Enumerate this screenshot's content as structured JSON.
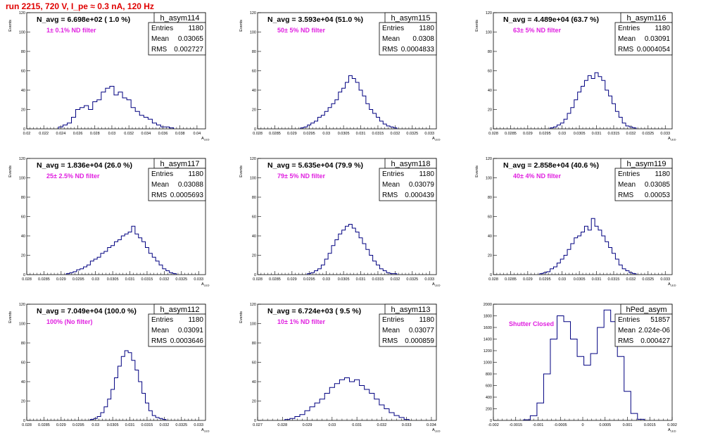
{
  "header": {
    "run_title": "run 2215,   720 V, I_pe ≈ 0.3 nA, 120 Hz"
  },
  "stats_labels": {
    "entries": "Entries",
    "mean": "Mean",
    "rms": "RMS"
  },
  "colors": {
    "hist_line": "#000080",
    "title": "#e00000",
    "annotation": "#e020e0"
  },
  "chart_data": [
    {
      "type": "bar",
      "name": "h_asym114",
      "navg": "N_avg = 6.698e+02 ( 1.0 %)",
      "filter": "1± 0.1% ND filter",
      "entries": "1180",
      "mean": "0.03065",
      "rms": "0.002727",
      "xlabel": "A_LED",
      "ylabel": "Events",
      "xlim": [
        0.02,
        0.041
      ],
      "ylim": [
        0,
        120
      ],
      "xticks": [
        "0.02",
        "0.022",
        "0.024",
        "0.026",
        "0.028",
        "0.03",
        "0.032",
        "0.034",
        "0.036",
        "0.038",
        "0.04"
      ],
      "yticks": [
        "0",
        "20",
        "40",
        "60",
        "80",
        "100",
        "120"
      ],
      "x": [
        0.024,
        0.0245,
        0.025,
        0.0255,
        0.026,
        0.0265,
        0.027,
        0.0275,
        0.028,
        0.0285,
        0.029,
        0.0295,
        0.03,
        0.0305,
        0.031,
        0.0315,
        0.032,
        0.0325,
        0.033,
        0.0335,
        0.034,
        0.0345,
        0.035,
        0.0355,
        0.036,
        0.0365,
        0.037
      ],
      "values": [
        2,
        4,
        6,
        12,
        20,
        22,
        24,
        20,
        28,
        30,
        38,
        42,
        44,
        35,
        38,
        32,
        30,
        22,
        18,
        14,
        12,
        10,
        6,
        4,
        2,
        2,
        1
      ]
    },
    {
      "type": "bar",
      "name": "h_asym115",
      "navg": "N_avg = 3.593e+04 (51.0 %)",
      "filter": "50± 5% ND filter",
      "entries": "1180",
      "mean": "0.0308",
      "rms": "0.0004833",
      "xlabel": "A_LED",
      "ylabel": "Events",
      "xlim": [
        0.028,
        0.0332
      ],
      "ylim": [
        0,
        120
      ],
      "xticks": [
        "0.028",
        "0.0285",
        "0.029",
        "0.0295",
        "0.03",
        "0.0305",
        "0.031",
        "0.0315",
        "0.032",
        "0.0325",
        "0.033"
      ],
      "yticks": [
        "0",
        "20",
        "40",
        "60",
        "80",
        "100",
        "120"
      ],
      "x": [
        0.0293,
        0.0294,
        0.0295,
        0.0296,
        0.0297,
        0.0298,
        0.0299,
        0.03,
        0.0301,
        0.0302,
        0.0303,
        0.0304,
        0.0305,
        0.0306,
        0.0307,
        0.0308,
        0.0309,
        0.031,
        0.0311,
        0.0312,
        0.0313,
        0.0314,
        0.0315,
        0.0316,
        0.0317,
        0.0318,
        0.0319,
        0.032
      ],
      "values": [
        1,
        2,
        4,
        6,
        8,
        12,
        14,
        18,
        22,
        26,
        30,
        38,
        42,
        48,
        55,
        52,
        48,
        40,
        34,
        26,
        20,
        16,
        12,
        8,
        5,
        3,
        2,
        1
      ]
    },
    {
      "type": "bar",
      "name": "h_asym116",
      "navg": "N_avg = 4.489e+04 (63.7 %)",
      "filter": "63± 5% ND filter",
      "entries": "1180",
      "mean": "0.03091",
      "rms": "0.0004054",
      "xlabel": "A_LED",
      "ylabel": "Events",
      "xlim": [
        0.028,
        0.0332
      ],
      "ylim": [
        0,
        120
      ],
      "xticks": [
        "0.028",
        "0.0285",
        "0.029",
        "0.0295",
        "0.03",
        "0.0305",
        "0.031",
        "0.0315",
        "0.032",
        "0.0325",
        "0.033"
      ],
      "yticks": [
        "0",
        "20",
        "40",
        "60",
        "80",
        "100",
        "120"
      ],
      "x": [
        0.0297,
        0.0298,
        0.0299,
        0.03,
        0.0301,
        0.0302,
        0.0303,
        0.0304,
        0.0305,
        0.0306,
        0.0307,
        0.0308,
        0.0309,
        0.031,
        0.0311,
        0.0312,
        0.0313,
        0.0314,
        0.0315,
        0.0316,
        0.0317,
        0.0318,
        0.0319,
        0.032,
        0.0321
      ],
      "values": [
        1,
        2,
        4,
        6,
        10,
        16,
        22,
        30,
        38,
        44,
        50,
        55,
        52,
        58,
        54,
        50,
        40,
        34,
        26,
        18,
        12,
        6,
        3,
        2,
        1
      ]
    },
    {
      "type": "bar",
      "name": "h_asym117",
      "navg": "N_avg = 1.836e+04 (26.0 %)",
      "filter": "25± 2.5% ND filter",
      "entries": "1180",
      "mean": "0.03088",
      "rms": "0.0005693",
      "xlabel": "A_LED",
      "ylabel": "Events",
      "xlim": [
        0.028,
        0.0332
      ],
      "ylim": [
        0,
        120
      ],
      "xticks": [
        "0.028",
        "0.0285",
        "0.029",
        "0.0295",
        "0.03",
        "0.0305",
        "0.031",
        "0.0315",
        "0.032",
        "0.0325",
        "0.033"
      ],
      "yticks": [
        "0",
        "20",
        "40",
        "60",
        "80",
        "100",
        "120"
      ],
      "x": [
        0.0292,
        0.0293,
        0.0294,
        0.0295,
        0.0296,
        0.0297,
        0.0298,
        0.0299,
        0.03,
        0.0301,
        0.0302,
        0.0303,
        0.0304,
        0.0305,
        0.0306,
        0.0307,
        0.0308,
        0.0309,
        0.031,
        0.0311,
        0.0312,
        0.0313,
        0.0314,
        0.0315,
        0.0316,
        0.0317,
        0.0318,
        0.0319,
        0.032,
        0.0321,
        0.0322,
        0.0323
      ],
      "values": [
        1,
        2,
        3,
        5,
        6,
        8,
        10,
        14,
        16,
        18,
        22,
        24,
        28,
        30,
        34,
        36,
        40,
        42,
        44,
        50,
        42,
        38,
        34,
        28,
        22,
        18,
        14,
        10,
        6,
        4,
        2,
        1
      ]
    },
    {
      "type": "bar",
      "name": "h_asym118",
      "navg": "N_avg = 5.635e+04 (79.9 %)",
      "filter": "79± 5% ND filter",
      "entries": "1180",
      "mean": "0.03079",
      "rms": "0.000439",
      "xlabel": "A_LED",
      "ylabel": "Events",
      "xlim": [
        0.028,
        0.0332
      ],
      "ylim": [
        0,
        120
      ],
      "xticks": [
        "0.028",
        "0.0285",
        "0.029",
        "0.0295",
        "0.03",
        "0.0305",
        "0.031",
        "0.0315",
        "0.032",
        "0.0325",
        "0.033"
      ],
      "yticks": [
        "0",
        "20",
        "40",
        "60",
        "80",
        "100",
        "120"
      ],
      "x": [
        0.0295,
        0.0296,
        0.0297,
        0.0298,
        0.0299,
        0.03,
        0.0301,
        0.0302,
        0.0303,
        0.0304,
        0.0305,
        0.0306,
        0.0307,
        0.0308,
        0.0309,
        0.031,
        0.0311,
        0.0312,
        0.0313,
        0.0314,
        0.0315,
        0.0316,
        0.0317,
        0.0318,
        0.0319,
        0.032
      ],
      "values": [
        1,
        2,
        4,
        6,
        10,
        16,
        22,
        30,
        36,
        42,
        46,
        50,
        52,
        48,
        44,
        38,
        32,
        26,
        20,
        14,
        10,
        6,
        4,
        2,
        1,
        1
      ]
    },
    {
      "type": "bar",
      "name": "h_asym119",
      "navg": "N_avg = 2.858e+04 (40.6 %)",
      "filter": "40± 4% ND filter",
      "entries": "1180",
      "mean": "0.03085",
      "rms": "0.00053",
      "xlabel": "A_LED",
      "ylabel": "Events",
      "xlim": [
        0.028,
        0.0332
      ],
      "ylim": [
        0,
        120
      ],
      "xticks": [
        "0.028",
        "0.0285",
        "0.029",
        "0.0295",
        "0.03",
        "0.0305",
        "0.031",
        "0.0315",
        "0.032",
        "0.0325",
        "0.033"
      ],
      "yticks": [
        "0",
        "20",
        "40",
        "60",
        "80",
        "100",
        "120"
      ],
      "x": [
        0.0294,
        0.0295,
        0.0296,
        0.0297,
        0.0298,
        0.0299,
        0.03,
        0.0301,
        0.0302,
        0.0303,
        0.0304,
        0.0305,
        0.0306,
        0.0307,
        0.0308,
        0.0309,
        0.031,
        0.0311,
        0.0312,
        0.0313,
        0.0314,
        0.0315,
        0.0316,
        0.0317,
        0.0318,
        0.0319,
        0.032,
        0.0321
      ],
      "values": [
        1,
        2,
        3,
        6,
        8,
        12,
        16,
        20,
        26,
        32,
        38,
        40,
        44,
        50,
        46,
        58,
        50,
        46,
        40,
        34,
        28,
        22,
        16,
        10,
        6,
        4,
        2,
        1
      ]
    },
    {
      "type": "bar",
      "name": "h_asym112",
      "navg": "N_avg = 7.049e+04 (100.0 %)",
      "filter": "100% (No filter)",
      "entries": "1180",
      "mean": "0.03091",
      "rms": "0.0003646",
      "xlabel": "A_LED",
      "ylabel": "Events",
      "xlim": [
        0.028,
        0.0332
      ],
      "ylim": [
        0,
        120
      ],
      "xticks": [
        "0.028",
        "0.0285",
        "0.029",
        "0.0295",
        "0.03",
        "0.0305",
        "0.031",
        "0.0315",
        "0.032",
        "0.0325",
        "0.033"
      ],
      "yticks": [
        "0",
        "20",
        "40",
        "60",
        "80",
        "100",
        "120"
      ],
      "x": [
        0.0299,
        0.03,
        0.0301,
        0.0302,
        0.0303,
        0.0304,
        0.0305,
        0.0306,
        0.0307,
        0.0308,
        0.0309,
        0.031,
        0.0311,
        0.0312,
        0.0313,
        0.0314,
        0.0315,
        0.0316,
        0.0317,
        0.0318,
        0.0319,
        0.032
      ],
      "values": [
        1,
        2,
        4,
        8,
        14,
        22,
        32,
        44,
        56,
        66,
        72,
        70,
        62,
        52,
        40,
        28,
        18,
        10,
        5,
        3,
        2,
        1
      ]
    },
    {
      "type": "bar",
      "name": "h_asym113",
      "navg": "N_avg = 6.724e+03 ( 9.5 %)",
      "filter": "10± 1% ND filter",
      "entries": "1180",
      "mean": "0.03077",
      "rms": "0.000859",
      "xlabel": "A_LED",
      "ylabel": "Events",
      "xlim": [
        0.027,
        0.0342
      ],
      "ylim": [
        0,
        120
      ],
      "xticks": [
        "0.027",
        "0.028",
        "0.029",
        "0.03",
        "0.031",
        "0.032",
        "0.033",
        "0.034"
      ],
      "yticks": [
        "0",
        "20",
        "40",
        "60",
        "80",
        "100",
        "120"
      ],
      "x": [
        0.0282,
        0.0284,
        0.0286,
        0.0288,
        0.029,
        0.0292,
        0.0294,
        0.0296,
        0.0298,
        0.03,
        0.0302,
        0.0304,
        0.0306,
        0.0308,
        0.031,
        0.0312,
        0.0314,
        0.0316,
        0.0318,
        0.032,
        0.0322,
        0.0324,
        0.0326,
        0.0328,
        0.033
      ],
      "values": [
        1,
        2,
        4,
        6,
        10,
        14,
        18,
        22,
        28,
        34,
        38,
        42,
        44,
        40,
        42,
        36,
        32,
        28,
        22,
        16,
        12,
        8,
        5,
        3,
        1
      ]
    },
    {
      "type": "bar",
      "name": "hPed_asym",
      "navg": "",
      "filter": "Shutter Closed",
      "entries": "51857",
      "mean": "2.024e-06",
      "rms": "0.000427",
      "xlabel": "A_LED",
      "ylabel": "",
      "xlim": [
        -0.002,
        0.002
      ],
      "ylim": [
        0,
        2000
      ],
      "xticks": [
        "-0.002",
        "-0.0015",
        "-0.001",
        "-0.0005",
        "0",
        "0.0005",
        "0.001",
        "0.0015",
        "0.002"
      ],
      "yticks": [
        "0",
        "200",
        "400",
        "600",
        "800",
        "1000",
        "1200",
        "1400",
        "1600",
        "1800",
        "2000"
      ],
      "x": [
        -0.00125,
        -0.0011,
        -0.00095,
        -0.0008,
        -0.00065,
        -0.0005,
        -0.00035,
        -0.0002,
        -5e-05,
        0.0001,
        0.00025,
        0.0004,
        0.00055,
        0.0007,
        0.00085,
        0.001,
        0.00115,
        0.0013
      ],
      "values": [
        10,
        80,
        300,
        800,
        1400,
        1800,
        1700,
        1400,
        1100,
        950,
        1150,
        1600,
        1900,
        1700,
        1100,
        500,
        120,
        20
      ]
    }
  ]
}
